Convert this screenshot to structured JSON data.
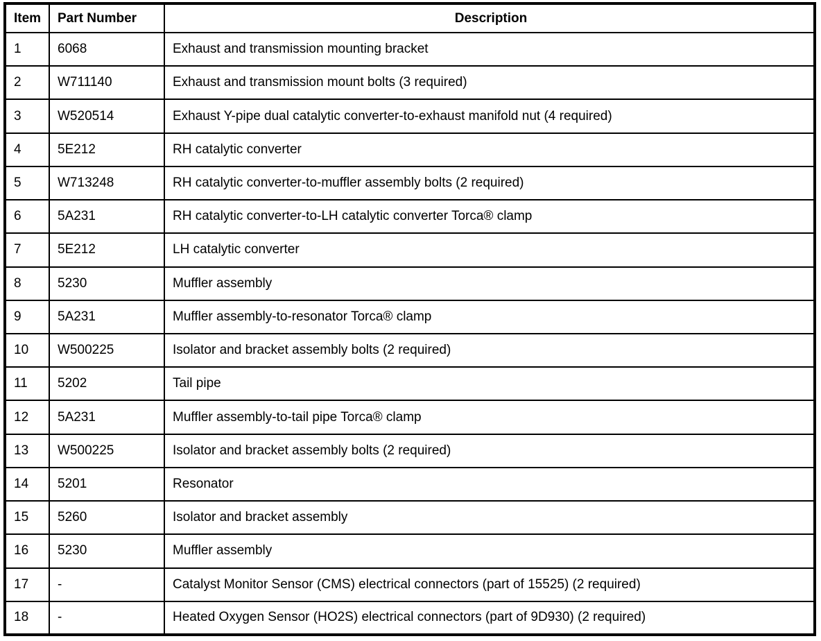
{
  "colors": {
    "border": "#000000",
    "background": "#ffffff",
    "text": "#000000"
  },
  "table": {
    "columns": [
      "Item",
      "Part Number",
      "Description"
    ],
    "rows": [
      {
        "item": "1",
        "part_number": "6068",
        "description": "Exhaust and transmission mounting bracket"
      },
      {
        "item": "2",
        "part_number": "W711140",
        "description": "Exhaust and transmission mount bolts (3 required)"
      },
      {
        "item": "3",
        "part_number": "W520514",
        "description": "Exhaust Y-pipe dual catalytic converter-to-exhaust manifold nut (4 required)"
      },
      {
        "item": "4",
        "part_number": "5E212",
        "description": "RH catalytic converter"
      },
      {
        "item": "5",
        "part_number": "W713248",
        "description": "RH catalytic converter-to-muffler assembly bolts (2 required)"
      },
      {
        "item": "6",
        "part_number": "5A231",
        "description": "RH catalytic converter-to-LH catalytic converter Torca® clamp"
      },
      {
        "item": "7",
        "part_number": "5E212",
        "description": "LH catalytic converter"
      },
      {
        "item": "8",
        "part_number": "5230",
        "description": "Muffler assembly"
      },
      {
        "item": "9",
        "part_number": "5A231",
        "description": "Muffler assembly-to-resonator Torca® clamp"
      },
      {
        "item": "10",
        "part_number": "W500225",
        "description": "Isolator and bracket assembly bolts (2 required)"
      },
      {
        "item": "11",
        "part_number": "5202",
        "description": "Tail pipe"
      },
      {
        "item": "12",
        "part_number": "5A231",
        "description": "Muffler assembly-to-tail pipe Torca® clamp"
      },
      {
        "item": "13",
        "part_number": "W500225",
        "description": "Isolator and bracket assembly bolts (2 required)"
      },
      {
        "item": "14",
        "part_number": "5201",
        "description": "Resonator"
      },
      {
        "item": "15",
        "part_number": "5260",
        "description": "Isolator and bracket assembly"
      },
      {
        "item": "16",
        "part_number": "5230",
        "description": "Muffler assembly"
      },
      {
        "item": "17",
        "part_number": "-",
        "description": "Catalyst Monitor Sensor (CMS) electrical connectors (part of 15525) (2 required)"
      },
      {
        "item": "18",
        "part_number": "-",
        "description": "Heated Oxygen Sensor (HO2S) electrical connectors (part of 9D930) (2 required)"
      }
    ]
  }
}
